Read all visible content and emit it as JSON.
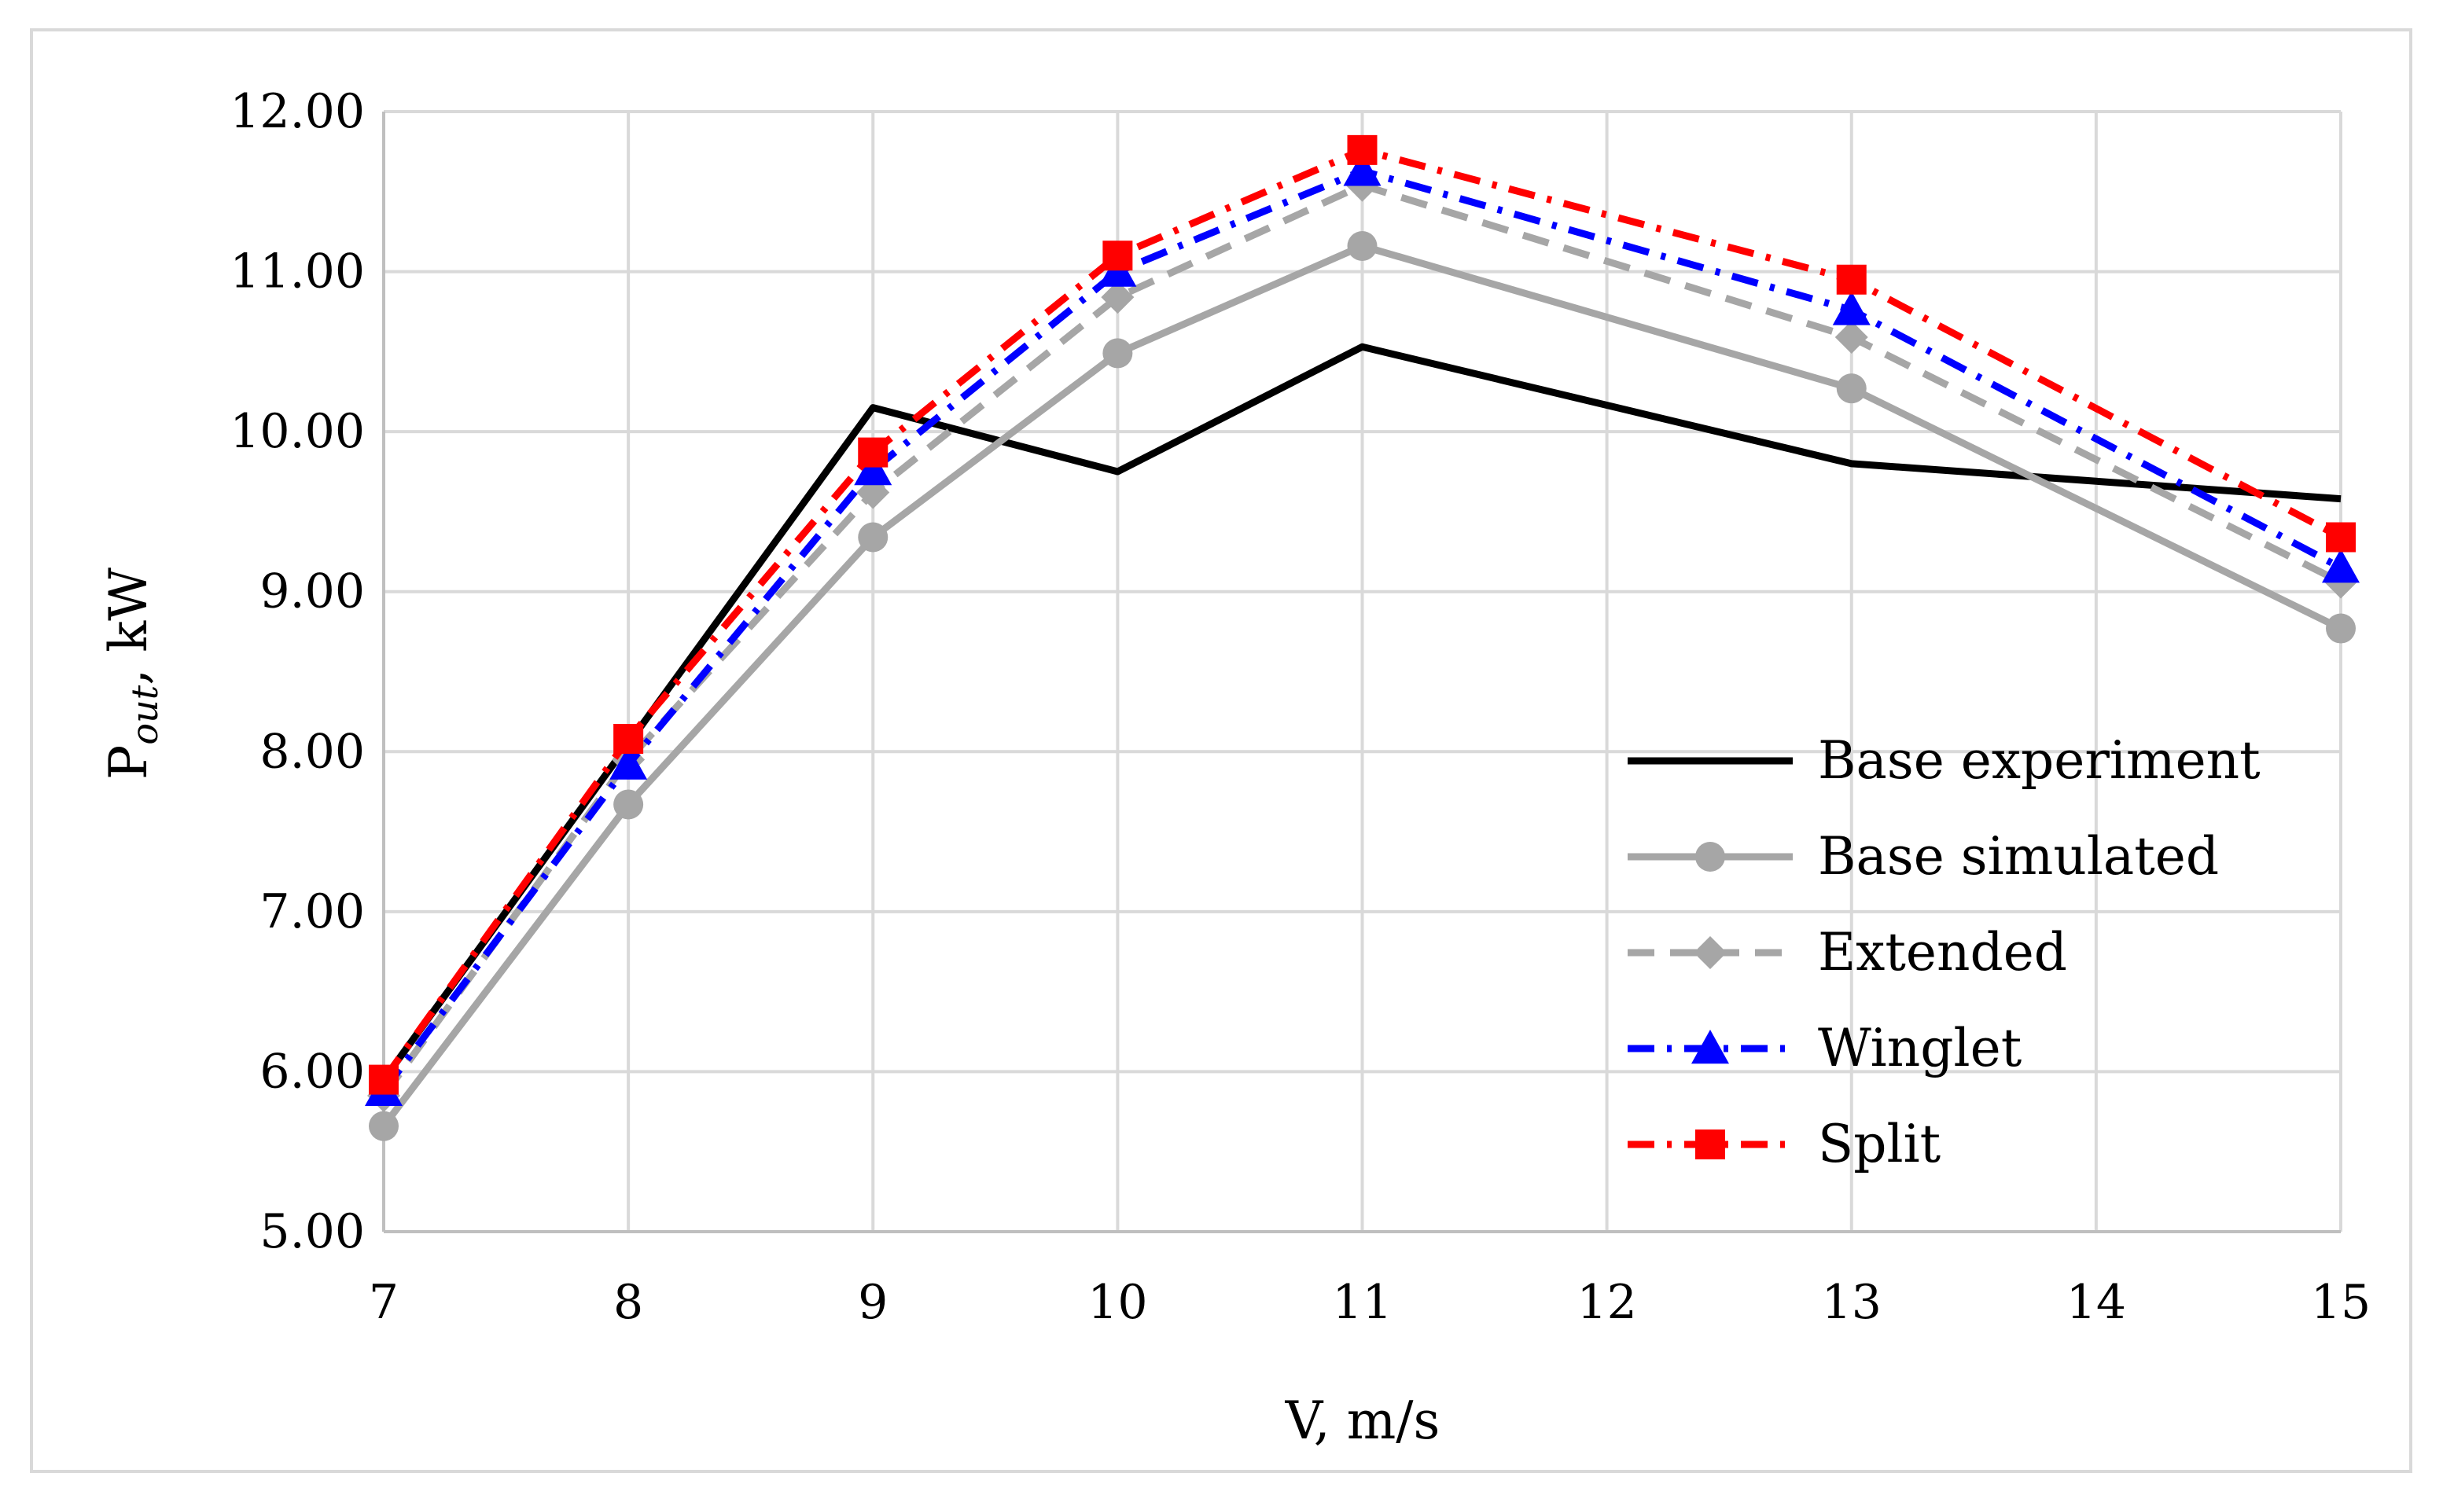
{
  "chart_data": {
    "type": "line",
    "title": "",
    "xlabel": "V, m/s",
    "ylabel_main": "P",
    "ylabel_sub": "out",
    "ylabel_rest": ", kW",
    "categories": [
      "7",
      "8",
      "9",
      "10",
      "11",
      "12",
      "13",
      "14",
      "15"
    ],
    "ylim": [
      5,
      12
    ],
    "yticks": [
      "5.00",
      "6.00",
      "7.00",
      "8.00",
      "9.00",
      "10.00",
      "11.00",
      "12.00"
    ],
    "grid": true,
    "legend_position": "bottom-right",
    "series": [
      {
        "name": "Base experiment",
        "color": "#000000",
        "dash": "solid",
        "marker": "none",
        "x": [
          7,
          8,
          9,
          10,
          11,
          13,
          15
        ],
        "values": [
          5.95,
          8.05,
          10.15,
          9.75,
          10.53,
          9.8,
          9.58
        ]
      },
      {
        "name": "Base simulated",
        "color": "#a6a6a6",
        "dash": "solid",
        "marker": "circle",
        "x": [
          7,
          8,
          9,
          10,
          11,
          13,
          15
        ],
        "values": [
          5.66,
          7.67,
          9.34,
          10.49,
          11.16,
          10.27,
          8.77
        ]
      },
      {
        "name": "Extended",
        "color": "#a6a6a6",
        "dash": "dash",
        "marker": "diamond",
        "x": [
          7,
          8,
          9,
          10,
          11,
          13,
          15
        ],
        "values": [
          5.85,
          7.95,
          9.62,
          10.84,
          11.54,
          10.59,
          9.06
        ]
      },
      {
        "name": "Winglet",
        "color": "#0000ff",
        "dash": "dashdot",
        "marker": "triangle",
        "x": [
          7,
          8,
          9,
          10,
          11,
          13,
          15
        ],
        "values": [
          5.88,
          7.92,
          9.76,
          11.0,
          11.63,
          10.76,
          9.15
        ]
      },
      {
        "name": "Split",
        "color": "#ff0000",
        "dash": "dashdot",
        "marker": "square",
        "x": [
          7,
          8,
          9,
          10,
          11,
          13,
          15
        ],
        "values": [
          5.95,
          8.08,
          9.87,
          11.1,
          11.76,
          10.95,
          9.34
        ]
      }
    ]
  }
}
